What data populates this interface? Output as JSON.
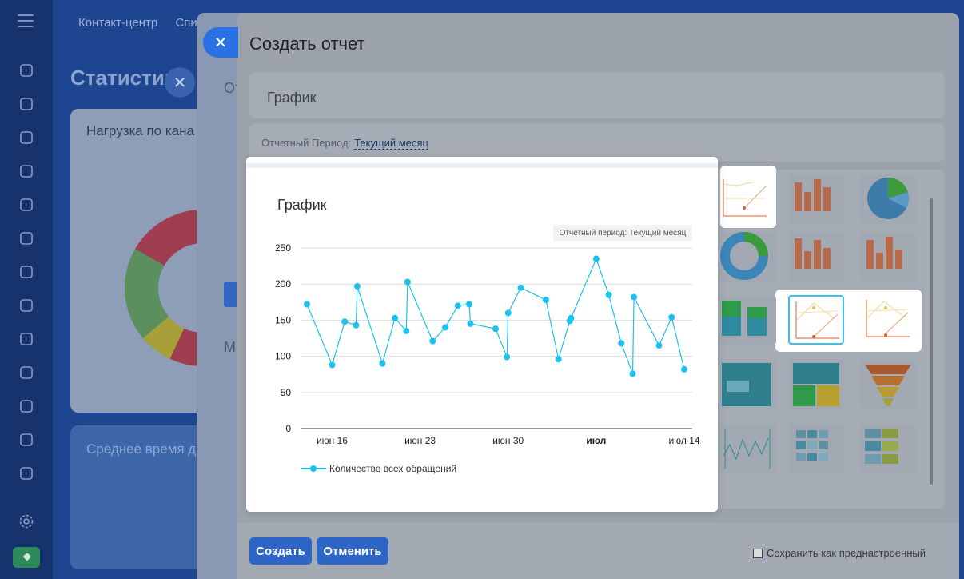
{
  "background": {
    "nav": [
      "Контакт-центр",
      "Спи"
    ],
    "page_title": "Статистик",
    "card1_title": "Нагрузка по кана",
    "card2_title": "Среднее время д",
    "panel_texts": [
      "От",
      "М"
    ],
    "sidebar_icons": [
      "puzzle-icon",
      "chat-icon",
      "document-icon",
      "hexagon-icon",
      "calendar-icon",
      "file-icon",
      "presentation-icon",
      "card-icon",
      "mail-icon",
      "people-icon",
      "checkbox-icon",
      "schedule-icon",
      "archive-icon"
    ]
  },
  "modal": {
    "title": "Создать отчет",
    "report_name": "График",
    "period_label": "Отчетный Период:",
    "period_value": "Текущий месяц",
    "create_label": "Создать",
    "cancel_label": "Отменить",
    "save_preset_label": "Сохранить как преднастроенный"
  },
  "preview": {
    "title": "График",
    "period_badge": "Отчетный период: Текущий месяц"
  },
  "chart_data": {
    "type": "line",
    "title": "График",
    "ylim": [
      0,
      250
    ],
    "yticks": [
      0,
      50,
      100,
      150,
      200,
      250
    ],
    "xlabel": "",
    "ylabel": "",
    "xticks": [
      {
        "day": 16,
        "label": "июн 16",
        "bold": false
      },
      {
        "day": 23,
        "label": "июн 23",
        "bold": false
      },
      {
        "day": 30,
        "label": "июн 30",
        "bold": false
      },
      {
        "day": 37,
        "label": "июл",
        "bold": true
      },
      {
        "day": 44,
        "label": "июл 14",
        "bold": false
      }
    ],
    "series": [
      {
        "name": "Количество всех обращений",
        "color": "#1cc2ef",
        "points": [
          {
            "day": 14.0,
            "y": 172
          },
          {
            "day": 16.0,
            "y": 88
          },
          {
            "day": 17.0,
            "y": 148
          },
          {
            "day": 17.9,
            "y": 143
          },
          {
            "day": 18.0,
            "y": 197
          },
          {
            "day": 20.0,
            "y": 90
          },
          {
            "day": 21.0,
            "y": 153
          },
          {
            "day": 21.9,
            "y": 135
          },
          {
            "day": 22.0,
            "y": 203
          },
          {
            "day": 24.0,
            "y": 121
          },
          {
            "day": 25.0,
            "y": 140
          },
          {
            "day": 26.0,
            "y": 170
          },
          {
            "day": 26.9,
            "y": 172
          },
          {
            "day": 27.0,
            "y": 145
          },
          {
            "day": 29.0,
            "y": 138
          },
          {
            "day": 29.9,
            "y": 99
          },
          {
            "day": 30.0,
            "y": 160
          },
          {
            "day": 31.0,
            "y": 195
          },
          {
            "day": 33.0,
            "y": 178
          },
          {
            "day": 34.0,
            "y": 96
          },
          {
            "day": 34.9,
            "y": 149
          },
          {
            "day": 35.0,
            "y": 153
          },
          {
            "day": 37.0,
            "y": 235
          },
          {
            "day": 38.0,
            "y": 185
          },
          {
            "day": 39.0,
            "y": 118
          },
          {
            "day": 39.9,
            "y": 76
          },
          {
            "day": 40.0,
            "y": 182
          },
          {
            "day": 42.0,
            "y": 115
          },
          {
            "day": 43.0,
            "y": 154
          },
          {
            "day": 44.0,
            "y": 82
          }
        ]
      }
    ]
  }
}
